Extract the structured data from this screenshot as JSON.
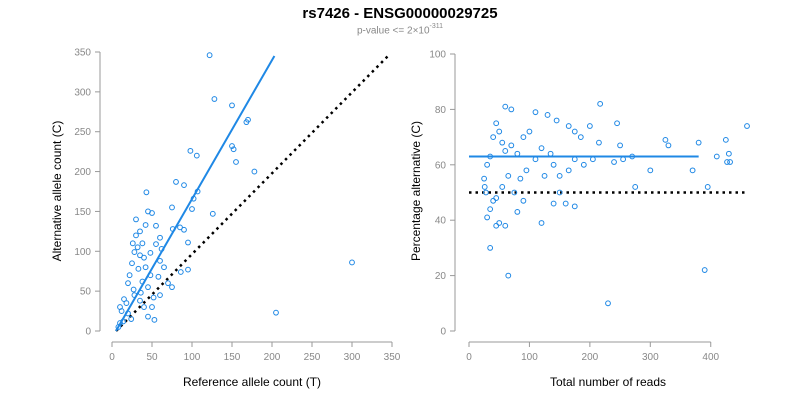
{
  "title": "rs7426 - ENSG00000029725",
  "subtitle": {
    "prefix": "p-value <= 2×10",
    "exponent": "-311"
  },
  "colors": {
    "points": "#1f88e5",
    "fit": "#1f88e5",
    "reference": "#000000",
    "axis": "#999999",
    "tick_label": "#888888"
  },
  "chart_data": [
    {
      "type": "scatter",
      "title": "",
      "xlabel": "Reference allele count (T)",
      "ylabel": "Alternative allele count (C)",
      "xlim": [
        0,
        350
      ],
      "ylim": [
        0,
        350
      ],
      "xticks": [
        0,
        50,
        100,
        150,
        200,
        250,
        300,
        350
      ],
      "yticks": [
        0,
        50,
        100,
        150,
        200,
        250,
        300,
        350
      ],
      "fit_line": {
        "label": "fit",
        "x": [
          5,
          203
        ],
        "y": [
          0,
          345
        ]
      },
      "reference_line": {
        "label": "y = x",
        "x": [
          5,
          345
        ],
        "y": [
          0,
          345
        ]
      },
      "points": [
        [
          122,
          346
        ],
        [
          128,
          291
        ],
        [
          150,
          283
        ],
        [
          170,
          265
        ],
        [
          168,
          262
        ],
        [
          98,
          226
        ],
        [
          106,
          220
        ],
        [
          150,
          232
        ],
        [
          152,
          228
        ],
        [
          155,
          212
        ],
        [
          80,
          187
        ],
        [
          90,
          183
        ],
        [
          107,
          175
        ],
        [
          178,
          200
        ],
        [
          43,
          174
        ],
        [
          102,
          166
        ],
        [
          126,
          147
        ],
        [
          100,
          153
        ],
        [
          75,
          155
        ],
        [
          45,
          150
        ],
        [
          50,
          148
        ],
        [
          76,
          128
        ],
        [
          85,
          130
        ],
        [
          90,
          127
        ],
        [
          95,
          111
        ],
        [
          60,
          117
        ],
        [
          55,
          109
        ],
        [
          62,
          103
        ],
        [
          300,
          86
        ],
        [
          205,
          23
        ],
        [
          75,
          55
        ],
        [
          86,
          74
        ],
        [
          95,
          77
        ],
        [
          52,
          42
        ],
        [
          40,
          30
        ],
        [
          45,
          18
        ],
        [
          53,
          14
        ],
        [
          30,
          120
        ],
        [
          35,
          125
        ],
        [
          28,
          99
        ],
        [
          25,
          85
        ],
        [
          35,
          95
        ],
        [
          70,
          60
        ],
        [
          60,
          88
        ],
        [
          48,
          70
        ],
        [
          38,
          62
        ],
        [
          22,
          70
        ],
        [
          15,
          40
        ],
        [
          12,
          25
        ],
        [
          20,
          22
        ],
        [
          10,
          10
        ],
        [
          8,
          5
        ],
        [
          30,
          140
        ],
        [
          42,
          133
        ],
        [
          55,
          132
        ],
        [
          38,
          110
        ],
        [
          32,
          105
        ],
        [
          40,
          92
        ],
        [
          65,
          80
        ],
        [
          58,
          68
        ],
        [
          33,
          78
        ],
        [
          27,
          52
        ],
        [
          18,
          35
        ],
        [
          24,
          15
        ],
        [
          14,
          12
        ],
        [
          10,
          30
        ],
        [
          20,
          60
        ],
        [
          28,
          45
        ],
        [
          35,
          38
        ],
        [
          45,
          55
        ],
        [
          50,
          30
        ],
        [
          60,
          45
        ],
        [
          36,
          48
        ],
        [
          42,
          80
        ],
        [
          26,
          110
        ],
        [
          48,
          98
        ]
      ]
    },
    {
      "type": "scatter",
      "title": "",
      "xlabel": "Total number of reads",
      "ylabel": "Percentage alternative (C)",
      "xlim": [
        0,
        460
      ],
      "ylim": [
        0,
        100
      ],
      "xticks": [
        0,
        100,
        200,
        300,
        400
      ],
      "yticks": [
        0,
        20,
        40,
        60,
        80,
        100
      ],
      "fit_line": {
        "label": "fit",
        "x": [
          0,
          380
        ],
        "y": [
          63,
          63
        ]
      },
      "reference_line": {
        "label": "50%",
        "x": [
          0,
          460
        ],
        "y": [
          50,
          50
        ]
      },
      "points": [
        [
          60,
          81
        ],
        [
          70,
          80
        ],
        [
          217,
          82
        ],
        [
          460,
          74
        ],
        [
          245,
          75
        ],
        [
          200,
          74
        ],
        [
          175,
          72
        ],
        [
          110,
          79
        ],
        [
          130,
          78
        ],
        [
          145,
          76
        ],
        [
          165,
          74
        ],
        [
          185,
          70
        ],
        [
          215,
          68
        ],
        [
          250,
          67
        ],
        [
          325,
          69
        ],
        [
          330,
          67
        ],
        [
          380,
          68
        ],
        [
          425,
          69
        ],
        [
          430,
          64
        ],
        [
          427,
          61
        ],
        [
          432,
          61
        ],
        [
          410,
          63
        ],
        [
          370,
          58
        ],
        [
          395,
          52
        ],
        [
          300,
          58
        ],
        [
          275,
          52
        ],
        [
          270,
          63
        ],
        [
          240,
          61
        ],
        [
          255,
          62
        ],
        [
          205,
          62
        ],
        [
          190,
          60
        ],
        [
          175,
          62
        ],
        [
          165,
          58
        ],
        [
          150,
          56
        ],
        [
          140,
          60
        ],
        [
          125,
          56
        ],
        [
          110,
          62
        ],
        [
          95,
          58
        ],
        [
          85,
          55
        ],
        [
          75,
          50
        ],
        [
          65,
          56
        ],
        [
          55,
          52
        ],
        [
          45,
          48
        ],
        [
          40,
          47
        ],
        [
          35,
          44
        ],
        [
          30,
          41
        ],
        [
          28,
          50
        ],
        [
          26,
          52
        ],
        [
          25,
          55
        ],
        [
          30,
          60
        ],
        [
          35,
          63
        ],
        [
          40,
          70
        ],
        [
          45,
          75
        ],
        [
          50,
          72
        ],
        [
          55,
          68
        ],
        [
          60,
          65
        ],
        [
          70,
          67
        ],
        [
          80,
          64
        ],
        [
          90,
          70
        ],
        [
          100,
          72
        ],
        [
          120,
          66
        ],
        [
          135,
          64
        ],
        [
          150,
          50
        ],
        [
          175,
          45
        ],
        [
          160,
          46
        ],
        [
          140,
          46
        ],
        [
          120,
          39
        ],
        [
          90,
          47
        ],
        [
          80,
          43
        ],
        [
          60,
          38
        ],
        [
          50,
          39
        ],
        [
          45,
          38
        ],
        [
          35,
          30
        ],
        [
          65,
          20
        ],
        [
          230,
          10
        ],
        [
          390,
          22
        ]
      ]
    }
  ]
}
